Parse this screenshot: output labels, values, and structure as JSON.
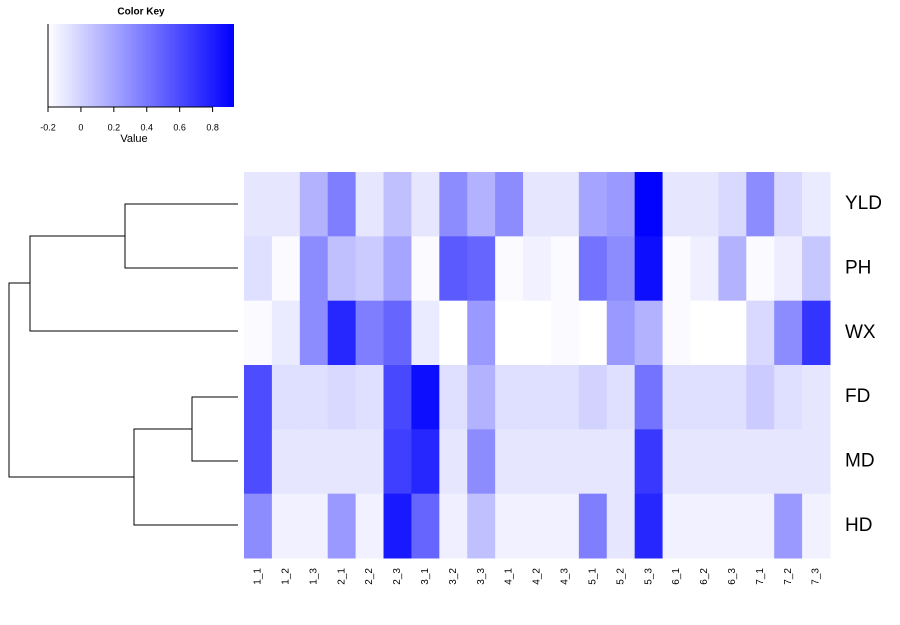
{
  "chart_data": {
    "type": "heatmap",
    "rows": [
      "YLD",
      "PH",
      "WX",
      "FD",
      "MD",
      "HD"
    ],
    "columns": [
      "1_1",
      "1_2",
      "1_3",
      "2_1",
      "2_2",
      "2_3",
      "3_1",
      "3_2",
      "3_3",
      "4_1",
      "4_2",
      "4_3",
      "5_1",
      "5_2",
      "5_3",
      "6_1",
      "6_2",
      "6_3",
      "7_1",
      "7_2",
      "7_3"
    ],
    "values": [
      [
        -0.09,
        -0.09,
        0.14,
        0.37,
        -0.09,
        0.08,
        -0.09,
        0.31,
        0.14,
        0.31,
        -0.09,
        -0.09,
        0.2,
        0.25,
        0.92,
        -0.09,
        -0.09,
        -0.03,
        0.31,
        -0.03,
        -0.11
      ],
      [
        -0.06,
        -0.18,
        0.31,
        0.08,
        0.03,
        0.2,
        -0.18,
        0.53,
        0.48,
        -0.18,
        -0.14,
        -0.18,
        0.42,
        0.31,
        0.87,
        -0.18,
        -0.13,
        0.14,
        -0.18,
        -0.12,
        0.05
      ],
      [
        -0.18,
        -0.11,
        0.31,
        0.76,
        0.37,
        0.48,
        -0.11,
        -0.2,
        0.25,
        -0.2,
        -0.2,
        -0.18,
        -0.2,
        0.25,
        0.14,
        -0.18,
        -0.2,
        -0.2,
        -0.03,
        0.31,
        0.7
      ],
      [
        0.59,
        -0.06,
        -0.06,
        -0.03,
        -0.06,
        0.61,
        0.87,
        -0.06,
        0.14,
        -0.06,
        -0.06,
        -0.06,
        0.0,
        -0.06,
        0.42,
        -0.06,
        -0.06,
        -0.06,
        0.03,
        -0.06,
        -0.09
      ],
      [
        0.59,
        -0.09,
        -0.09,
        -0.09,
        -0.09,
        0.65,
        0.76,
        -0.09,
        0.31,
        -0.09,
        -0.09,
        -0.09,
        -0.09,
        -0.09,
        0.68,
        -0.09,
        -0.09,
        -0.09,
        -0.09,
        -0.09,
        -0.09
      ],
      [
        0.31,
        -0.14,
        -0.14,
        0.25,
        -0.14,
        0.82,
        0.48,
        -0.13,
        0.08,
        -0.14,
        -0.14,
        -0.14,
        0.37,
        -0.09,
        0.76,
        -0.14,
        -0.14,
        -0.14,
        -0.14,
        0.25,
        -0.14
      ]
    ],
    "low_color": "#ffffff",
    "high_color": "#0000ff",
    "color_key": {
      "title": "Color Key",
      "label": "Value",
      "lim": [
        -0.2,
        0.93
      ],
      "ticks": [
        -0.2,
        0,
        0.2,
        0.4,
        0.6,
        0.8
      ]
    }
  }
}
